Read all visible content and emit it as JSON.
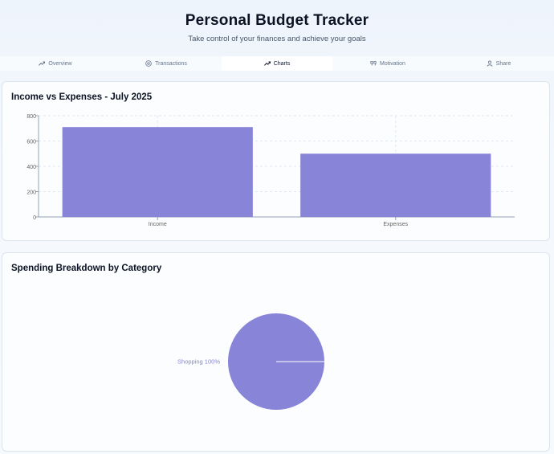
{
  "header": {
    "title": "Personal Budget Tracker",
    "subtitle": "Take control of your finances and achieve your goals"
  },
  "tabs": [
    {
      "label": "Overview",
      "icon": "trend-up-icon",
      "active": false
    },
    {
      "label": "Transactions",
      "icon": "dollar-circle-icon",
      "active": false
    },
    {
      "label": "Charts",
      "icon": "trend-up-icon",
      "active": true
    },
    {
      "label": "Motivation",
      "icon": "quote-icon",
      "active": false
    },
    {
      "label": "Share",
      "icon": "user-icon",
      "active": false
    }
  ],
  "colors": {
    "series": "#8884d8",
    "grid": "#e2e8f0",
    "axis": "#94a3b8"
  },
  "bar_card": {
    "title": "Income vs Expenses - July 2025"
  },
  "pie_card": {
    "title": "Spending Breakdown by Category"
  },
  "chart_data": [
    {
      "type": "bar",
      "title": "Income vs Expenses - July 2025",
      "categories": [
        "Income",
        "Expenses"
      ],
      "values": [
        710,
        500
      ],
      "ylim": [
        0,
        800
      ],
      "yticks": [
        0,
        200,
        400,
        600,
        800
      ],
      "grid": true
    },
    {
      "type": "pie",
      "title": "Spending Breakdown by Category",
      "slices": [
        {
          "label": "Shopping",
          "value": 100
        }
      ],
      "slice_labels": [
        "Shopping 100%"
      ]
    }
  ]
}
